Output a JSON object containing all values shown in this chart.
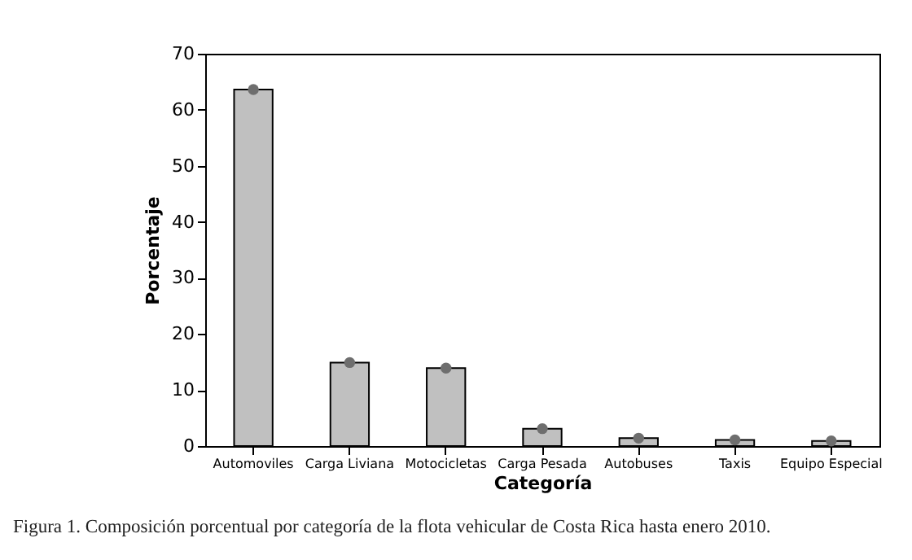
{
  "chart_data": {
    "type": "bar",
    "xlabel": "Categoría",
    "ylabel": "Porcentaje",
    "categories": [
      "Automoviles",
      "Carga Liviana",
      "Motocicletas",
      "Carga Pesada",
      "Autobuses",
      "Taxis",
      "Equipo Especial"
    ],
    "series": [
      {
        "color": "#c0c0c0",
        "values": [
          63.6,
          14.9,
          13.9,
          3.1,
          1.4,
          1.1,
          0.9
        ]
      },
      {
        "type": "scatter",
        "color": "#6e6e6e",
        "marker": "circle",
        "x": [
          "Automoviles",
          "Carga Liviana",
          "Motocicletas",
          "Carga Pesada",
          "Autobuses",
          "Taxis",
          "Equipo Especial"
        ],
        "values": [
          63.6,
          14.9,
          13.9,
          3.1,
          1.4,
          1.1,
          0.9
        ]
      }
    ],
    "ylim": [
      0,
      70
    ],
    "yticks": [
      0,
      10,
      20,
      30,
      40,
      50,
      60,
      70
    ],
    "grid": false,
    "annotations": [
      "Figura 1. Composición porcentual por categoría de la flota vehicular de Costa Rica hasta enero 2010."
    ]
  }
}
